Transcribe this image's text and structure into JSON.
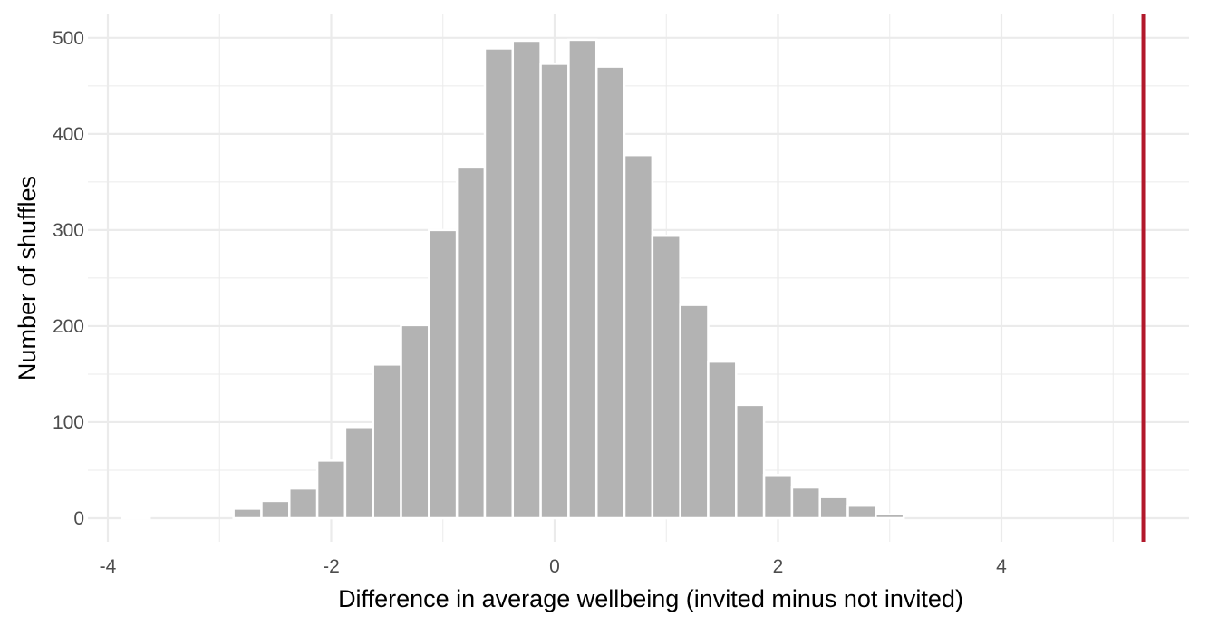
{
  "chart_data": {
    "type": "bar",
    "xlabel": "Difference in average wellbeing (invited minus not invited)",
    "ylabel": "Number of shuffles",
    "xlim": [
      -4,
      5.5
    ],
    "ylim": [
      0,
      500
    ],
    "x_ticks": [
      -4,
      -2,
      0,
      2,
      4
    ],
    "y_ticks": [
      0,
      100,
      200,
      300,
      400,
      500
    ],
    "grid": true,
    "bin_width": 0.25,
    "bins": [
      {
        "center": -3.75,
        "count": 1
      },
      {
        "center": -3.5,
        "count": 0
      },
      {
        "center": -3.25,
        "count": 0
      },
      {
        "center": -3.0,
        "count": 0
      },
      {
        "center": -2.75,
        "count": 10
      },
      {
        "center": -2.5,
        "count": 18
      },
      {
        "center": -2.25,
        "count": 31
      },
      {
        "center": -2.0,
        "count": 60
      },
      {
        "center": -1.75,
        "count": 95
      },
      {
        "center": -1.5,
        "count": 160
      },
      {
        "center": -1.25,
        "count": 201
      },
      {
        "center": -1.0,
        "count": 300
      },
      {
        "center": -0.75,
        "count": 366
      },
      {
        "center": -0.5,
        "count": 489
      },
      {
        "center": -0.25,
        "count": 497
      },
      {
        "center": 0.0,
        "count": 473
      },
      {
        "center": 0.25,
        "count": 498
      },
      {
        "center": 0.5,
        "count": 470
      },
      {
        "center": 0.75,
        "count": 378
      },
      {
        "center": 1.0,
        "count": 294
      },
      {
        "center": 1.25,
        "count": 222
      },
      {
        "center": 1.5,
        "count": 163
      },
      {
        "center": 1.75,
        "count": 118
      },
      {
        "center": 2.0,
        "count": 45
      },
      {
        "center": 2.25,
        "count": 32
      },
      {
        "center": 2.5,
        "count": 22
      },
      {
        "center": 2.75,
        "count": 13
      },
      {
        "center": 3.0,
        "count": 4
      }
    ],
    "reference_line": {
      "x": 5.27,
      "color": "#b2182b"
    },
    "bar_color": "#b3b3b3",
    "grid_color": "#ebebeb"
  }
}
